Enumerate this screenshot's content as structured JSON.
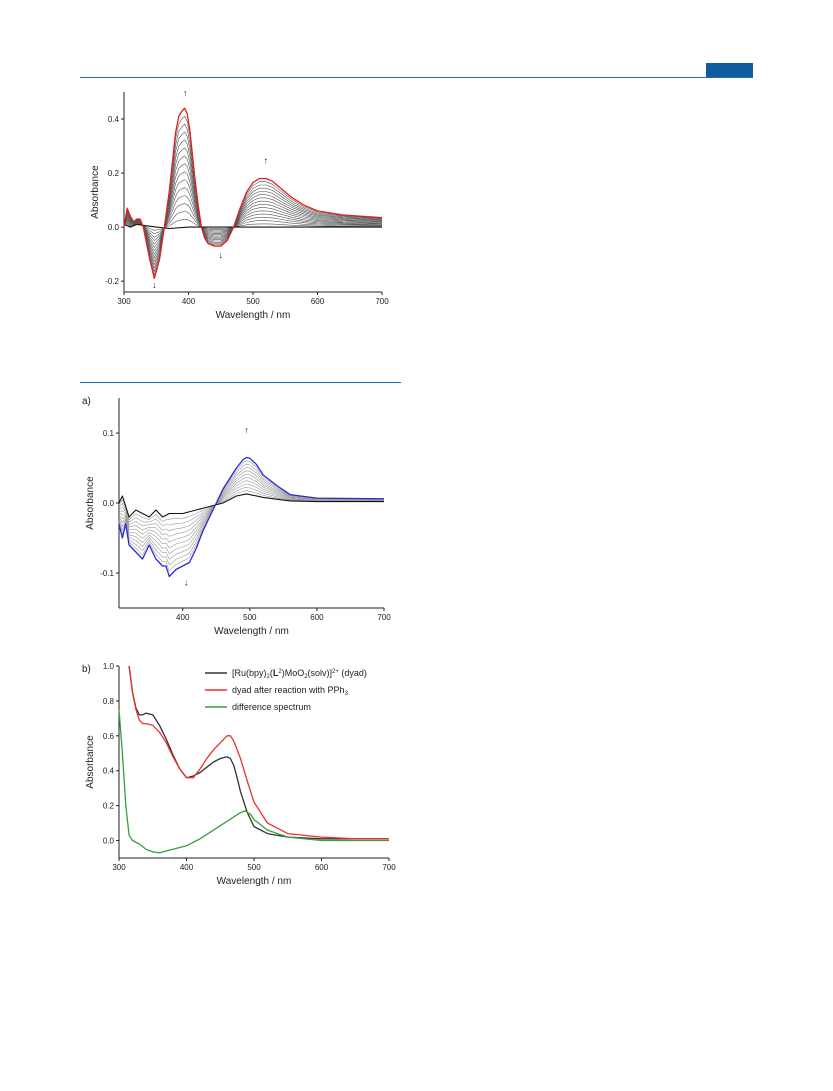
{
  "header": {
    "accent_color": "#0f5c9e"
  },
  "chart_data": [
    {
      "id": "chart1",
      "type": "line",
      "xlabel": "Wavelength / nm",
      "ylabel": "Absorbance",
      "xlim": [
        300,
        700
      ],
      "ylim": [
        -0.24,
        0.5
      ],
      "xticks": [
        300,
        400,
        500,
        600,
        700
      ],
      "yticks": [
        -0.2,
        0.0,
        0.2,
        0.4
      ],
      "ytick_decimals": 1,
      "colors": {
        "initial": "#111111",
        "final": "#e0201b",
        "intermediate": "#555555"
      },
      "intermediate_count": 14,
      "series": [
        {
          "role": "initial",
          "x": [
            300,
            310,
            320,
            335,
            350,
            370,
            400,
            430,
            460,
            500,
            550,
            600,
            700
          ],
          "y": [
            0.01,
            0.0,
            0.01,
            0.005,
            0.0,
            -0.005,
            0.0,
            0.0,
            0.0,
            0.0,
            0.0,
            0.0,
            0.0
          ]
        },
        {
          "role": "final",
          "x": [
            300,
            305,
            310,
            315,
            320,
            325,
            330,
            340,
            347,
            355,
            362,
            370,
            375,
            380,
            385,
            390,
            394,
            398,
            402,
            406,
            410,
            415,
            420,
            425,
            430,
            440,
            450,
            460,
            470,
            480,
            490,
            500,
            510,
            520,
            530,
            540,
            560,
            580,
            600,
            640,
            700
          ],
          "y": [
            0.0,
            0.07,
            0.04,
            0.02,
            0.03,
            0.03,
            0.0,
            -0.12,
            -0.19,
            -0.12,
            -0.01,
            0.13,
            0.24,
            0.35,
            0.41,
            0.43,
            0.44,
            0.42,
            0.36,
            0.27,
            0.18,
            0.08,
            0.0,
            -0.04,
            -0.06,
            -0.07,
            -0.07,
            -0.05,
            0.0,
            0.07,
            0.13,
            0.165,
            0.18,
            0.18,
            0.17,
            0.15,
            0.11,
            0.08,
            0.06,
            0.045,
            0.035
          ]
        }
      ],
      "annotations": [
        {
          "text": "↑",
          "x": 395,
          "y": 0.485
        },
        {
          "text": "↓",
          "x": 347,
          "y": -0.225
        },
        {
          "text": "↑",
          "x": 520,
          "y": 0.235
        },
        {
          "text": "↓",
          "x": 450,
          "y": -0.115
        }
      ]
    },
    {
      "id": "chart2",
      "type": "line",
      "panel_label": "a)",
      "xlabel": "Wavelength / nm",
      "ylabel": "Absorbance",
      "xlim": [
        305,
        700
      ],
      "ylim": [
        -0.15,
        0.15
      ],
      "xticks": [
        400,
        500,
        600,
        700
      ],
      "yticks": [
        -0.1,
        0.0,
        0.1
      ],
      "ytick_decimals": 1,
      "colors": {
        "initial": "#111111",
        "final": "#2a2ad8",
        "intermediate": "#9a9a9a"
      },
      "intermediate_count": 10,
      "series": [
        {
          "role": "initial",
          "x": [
            305,
            310,
            320,
            330,
            340,
            350,
            360,
            370,
            380,
            390,
            400,
            420,
            440,
            460,
            480,
            495,
            520,
            560,
            600,
            700
          ],
          "y": [
            0.0,
            0.01,
            -0.02,
            -0.01,
            -0.015,
            -0.02,
            -0.01,
            -0.02,
            -0.015,
            -0.015,
            -0.015,
            -0.01,
            -0.005,
            0.0,
            0.01,
            0.013,
            0.008,
            0.003,
            0.002,
            0.002
          ]
        },
        {
          "role": "final",
          "x": [
            305,
            310,
            315,
            320,
            330,
            340,
            350,
            360,
            370,
            375,
            380,
            390,
            400,
            410,
            420,
            430,
            440,
            450,
            460,
            470,
            480,
            490,
            495,
            500,
            510,
            520,
            540,
            560,
            600,
            700
          ],
          "y": [
            -0.03,
            -0.05,
            -0.03,
            -0.06,
            -0.07,
            -0.08,
            -0.06,
            -0.08,
            -0.09,
            -0.09,
            -0.105,
            -0.095,
            -0.09,
            -0.085,
            -0.065,
            -0.04,
            -0.02,
            0.0,
            0.02,
            0.035,
            0.05,
            0.062,
            0.065,
            0.064,
            0.055,
            0.04,
            0.025,
            0.012,
            0.007,
            0.006
          ]
        }
      ],
      "annotations": [
        {
          "text": "↑",
          "x": 495,
          "y": 0.1
        },
        {
          "text": "↓",
          "x": 405,
          "y": -0.118
        }
      ]
    },
    {
      "id": "chart3",
      "type": "line",
      "panel_label": "b)",
      "xlabel": "Wavelength / nm",
      "ylabel": "Absorbance",
      "xlim": [
        300,
        700
      ],
      "ylim": [
        -0.1,
        1.0
      ],
      "xticks": [
        300,
        400,
        500,
        600,
        700
      ],
      "yticks": [
        0.0,
        0.2,
        0.4,
        0.6,
        0.8,
        1.0
      ],
      "ytick_decimals": 1,
      "legend": {
        "position": "top-right",
        "entries": [
          {
            "prefix": "[Ru(bpy)",
            "sub1": "2",
            "mid1": "(",
            "bold": "L",
            "sup1": "2",
            "mid2": ")MoO",
            "sub2": "2",
            "mid3": "(solv)]",
            "sup2": "2+",
            "suffix": " (dyad)",
            "color": "#333333"
          },
          {
            "prefix": "dyad after reaction with PPh",
            "sub1": "3",
            "color": "#e8322b"
          },
          {
            "prefix": "difference spectrum",
            "color": "#3a9e3a"
          }
        ]
      },
      "series": [
        {
          "name": "dyad",
          "color": "#333333",
          "x": [
            315,
            320,
            325,
            330,
            335,
            340,
            350,
            360,
            370,
            380,
            390,
            400,
            410,
            420,
            430,
            440,
            450,
            460,
            465,
            470,
            475,
            480,
            490,
            500,
            520,
            550,
            600,
            650,
            700
          ],
          "y": [
            1.0,
            0.85,
            0.76,
            0.72,
            0.72,
            0.73,
            0.72,
            0.66,
            0.58,
            0.49,
            0.41,
            0.36,
            0.37,
            0.39,
            0.42,
            0.45,
            0.47,
            0.48,
            0.47,
            0.43,
            0.36,
            0.28,
            0.16,
            0.08,
            0.04,
            0.02,
            0.01,
            0.01,
            0.01
          ]
        },
        {
          "name": "after PPh3",
          "color": "#e8322b",
          "x": [
            315,
            320,
            325,
            330,
            335,
            340,
            350,
            360,
            370,
            380,
            390,
            400,
            410,
            420,
            430,
            440,
            450,
            460,
            465,
            470,
            480,
            490,
            500,
            520,
            550,
            600,
            650,
            700
          ],
          "y": [
            1.0,
            0.85,
            0.75,
            0.69,
            0.67,
            0.67,
            0.66,
            0.62,
            0.56,
            0.48,
            0.41,
            0.36,
            0.36,
            0.41,
            0.47,
            0.52,
            0.56,
            0.6,
            0.6,
            0.57,
            0.47,
            0.34,
            0.22,
            0.1,
            0.04,
            0.02,
            0.01,
            0.01
          ]
        },
        {
          "name": "difference",
          "color": "#3a9e3a",
          "x": [
            300,
            305,
            310,
            315,
            320,
            330,
            340,
            350,
            360,
            370,
            380,
            400,
            420,
            440,
            460,
            480,
            487,
            495,
            500,
            520,
            550,
            600,
            650,
            700
          ],
          "y": [
            0.75,
            0.5,
            0.2,
            0.03,
            0.0,
            -0.02,
            -0.05,
            -0.065,
            -0.07,
            -0.06,
            -0.05,
            -0.03,
            0.01,
            0.06,
            0.11,
            0.16,
            0.17,
            0.15,
            0.12,
            0.06,
            0.02,
            0.0,
            0.0,
            0.0
          ]
        }
      ]
    }
  ]
}
